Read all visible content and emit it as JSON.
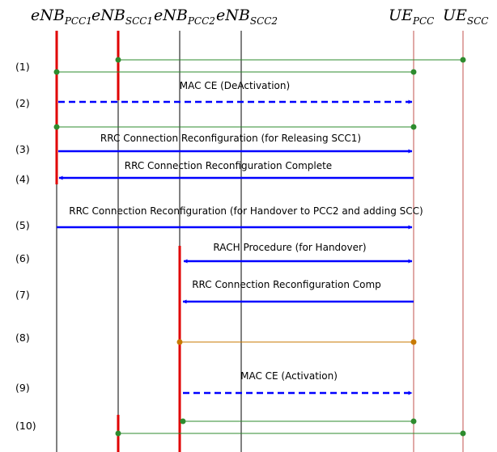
{
  "colors": {
    "lifeline_dark": "#000000",
    "lifeline_red": "#c0504d",
    "active_bar": "#e00000",
    "green": "#2e8b2e",
    "blue": "#0000ff",
    "orange": "#c87a00"
  },
  "entities": [
    {
      "id": "enb_pcc1",
      "main": "eNB",
      "sub": "PCC1"
    },
    {
      "id": "enb_scc1",
      "main": "eNB",
      "sub": "SCC1"
    },
    {
      "id": "enb_pcc2",
      "main": "eNB",
      "sub": "PCC2"
    },
    {
      "id": "enb_scc2",
      "main": "eNB",
      "sub": "SCC2"
    },
    {
      "id": "ue_pcc",
      "main": "UE",
      "sub": "PCC"
    },
    {
      "id": "ue_scc",
      "main": "UE",
      "sub": "SCC"
    }
  ],
  "steps": [
    "(1)",
    "(2)",
    "(3)",
    "(4)",
    "(5)",
    "(6)",
    "(7)",
    "(8)",
    "(9)",
    "(10)"
  ],
  "messages": {
    "m2": "MAC CE (DeActivation)",
    "m3": "RRC Connection Reconfiguration (for Releasing SCC1)",
    "m4": "RRC Connection Reconfiguration Complete",
    "m5": "RRC Connection Reconfiguration (for Handover to PCC2 and adding SCC)",
    "m6": "RACH Procedure (for Handover)",
    "m7": "RRC Connection Reconfiguration Comp",
    "m9": "MAC CE (Activation)"
  }
}
